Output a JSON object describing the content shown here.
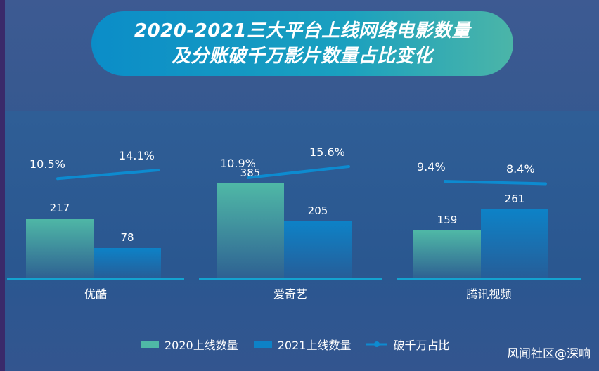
{
  "chart_data": {
    "type": "bar",
    "title": [
      "2020-2021三大平台上线网络电影数量",
      "及分账破千万影片数量占比变化"
    ],
    "categories": [
      "优酷",
      "爱奇艺",
      "腾讯视频"
    ],
    "series": [
      {
        "name": "2020上线数量",
        "values": [
          217,
          385,
          159
        ],
        "color": "#4fb8a6"
      },
      {
        "name": "2021上线数量",
        "values": [
          78,
          205,
          261
        ],
        "color": "#0d82c7"
      }
    ],
    "line_series": {
      "name": "破千万占比",
      "values_2020": [
        "10.5%",
        "10.9%",
        "9.4%"
      ],
      "values_2021": [
        "14.1%",
        "15.6%",
        "8.4%"
      ],
      "numeric_2020": [
        10.5,
        10.9,
        9.4
      ],
      "numeric_2021": [
        14.1,
        15.6,
        8.4
      ],
      "color": "#0d8bd0"
    },
    "legend_position": "bottom",
    "grid": false
  },
  "watermark": "风闻社区@深响"
}
